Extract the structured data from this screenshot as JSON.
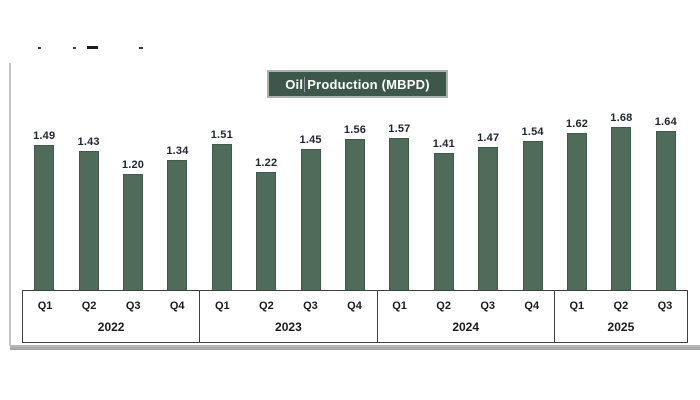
{
  "title_box": {
    "before_caret": "Oil",
    "after_caret": "Production (MBPD)"
  },
  "chart_data": {
    "type": "bar",
    "title": "Oil Production (MBPD)",
    "unit": "MBPD",
    "value_labels": true,
    "value_label_decimals": 2,
    "gridlines": false,
    "legend": "none",
    "ylim": [
      0,
      1.8
    ],
    "groups": [
      {
        "year": "2022",
        "categories": [
          "Q1",
          "Q2",
          "Q3",
          "Q4"
        ],
        "values": [
          1.49,
          1.43,
          1.2,
          1.34
        ]
      },
      {
        "year": "2023",
        "categories": [
          "Q1",
          "Q2",
          "Q3",
          "Q4"
        ],
        "values": [
          1.51,
          1.22,
          1.45,
          1.56
        ]
      },
      {
        "year": "2024",
        "categories": [
          "Q1",
          "Q2",
          "Q3",
          "Q4"
        ],
        "values": [
          1.57,
          1.41,
          1.47,
          1.54
        ]
      },
      {
        "year": "2025",
        "categories": [
          "Q1",
          "Q2",
          "Q3"
        ],
        "values": [
          1.62,
          1.68,
          1.64
        ]
      }
    ]
  },
  "colors": {
    "bar_fill": "#4e6c59",
    "bar_border": "#3f5a4b",
    "title_bg": "#3d574a",
    "title_text": "#ffffff",
    "value_label": "#1f2430",
    "axis_text": "#1a1a1a",
    "axis_border": "#3f3f3f",
    "bottom_rail": "#aeaeae",
    "left_rail": "#c6c6c6"
  }
}
